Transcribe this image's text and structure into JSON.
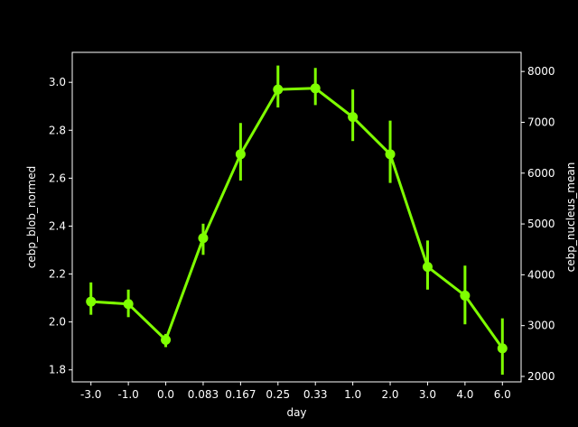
{
  "chart_data": {
    "type": "line",
    "title": "",
    "xlabel": "day",
    "ylabel": "cebp_blob_normed",
    "ylabel_right": "cebp_nucleus_mean",
    "categories": [
      "-3.0",
      "-1.0",
      "0.0",
      "0.083",
      "0.167",
      "0.25",
      "0.33",
      "1.0",
      "2.0",
      "3.0",
      "4.0",
      "6.0"
    ],
    "series": [
      {
        "values": [
          2.085,
          2.075,
          1.925,
          2.35,
          2.7,
          2.97,
          2.975,
          2.855,
          2.7,
          2.23,
          2.11,
          1.89
        ],
        "err_low": [
          2.03,
          2.02,
          1.895,
          2.28,
          2.59,
          2.895,
          2.905,
          2.755,
          2.58,
          2.135,
          1.99,
          1.78
        ],
        "err_high": [
          2.165,
          2.135,
          1.95,
          2.41,
          2.83,
          3.07,
          3.06,
          2.97,
          2.84,
          2.34,
          2.235,
          2.015
        ],
        "color": "#7fff00"
      }
    ],
    "ylim": [
      1.75,
      3.125
    ],
    "yticks": [
      "1.8",
      "2.0",
      "2.2",
      "2.4",
      "2.6",
      "2.8",
      "3.0"
    ],
    "ylim_right": [
      1893,
      8376
    ],
    "yticks_right": [
      "2000",
      "3000",
      "4000",
      "5000",
      "6000",
      "7000",
      "8000"
    ],
    "grid": false,
    "background": "#000000",
    "axis_color": "#ffffff"
  }
}
